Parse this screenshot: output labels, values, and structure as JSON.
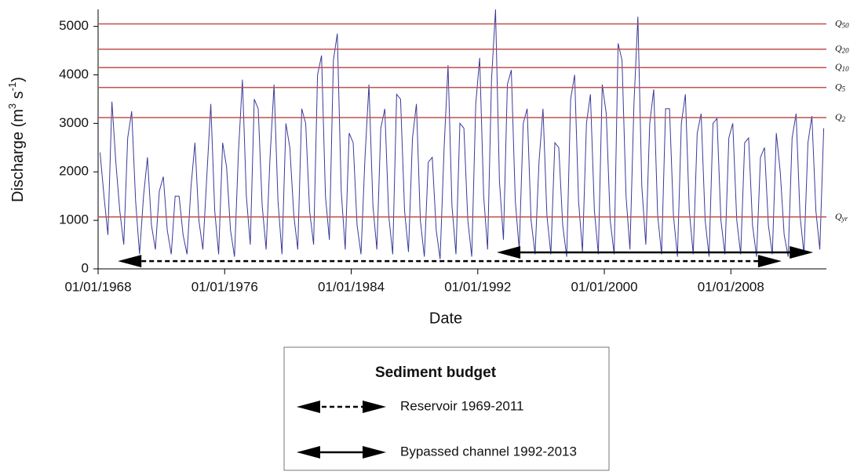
{
  "chart_data": {
    "type": "line",
    "xlabel": "Date",
    "ylabel": [
      "Discharge (m",
      "3",
      " s",
      "-1",
      ")"
    ],
    "color": "#3a3a9a",
    "xlim": [
      "01/01/1968",
      "15/01/2014"
    ],
    "xticks": [
      "01/01/1968",
      "01/01/1976",
      "01/01/1984",
      "01/01/1992",
      "01/01/2000",
      "01/01/2008"
    ],
    "ylim": [
      0,
      5350
    ],
    "yticks": [
      0,
      1000,
      2000,
      3000,
      4000,
      5000
    ],
    "x": [
      "15/02/1968",
      "15/05/1968",
      "15/08/1968",
      "15/11/1968",
      "15/02/1969",
      "15/05/1969",
      "15/08/1969",
      "15/11/1969",
      "15/02/1970",
      "15/05/1970",
      "15/08/1970",
      "15/11/1970",
      "15/02/1971",
      "15/05/1971",
      "15/08/1971",
      "15/11/1971",
      "15/02/1972",
      "15/05/1972",
      "15/08/1972",
      "15/11/1972",
      "15/02/1973",
      "15/05/1973",
      "15/08/1973",
      "15/11/1973",
      "15/02/1974",
      "15/05/1974",
      "15/08/1974",
      "15/11/1974",
      "15/02/1975",
      "15/05/1975",
      "15/08/1975",
      "15/11/1975",
      "15/02/1976",
      "15/05/1976",
      "15/08/1976",
      "15/11/1976",
      "15/02/1977",
      "15/05/1977",
      "15/08/1977",
      "15/11/1977",
      "15/02/1978",
      "15/05/1978",
      "15/08/1978",
      "15/11/1978",
      "15/02/1979",
      "15/05/1979",
      "15/08/1979",
      "15/11/1979",
      "15/02/1980",
      "15/05/1980",
      "15/08/1980",
      "15/11/1980",
      "15/02/1981",
      "15/05/1981",
      "15/08/1981",
      "15/11/1981",
      "15/02/1982",
      "15/05/1982",
      "15/08/1982",
      "15/11/1982",
      "15/02/1983",
      "15/05/1983",
      "15/08/1983",
      "15/11/1983",
      "15/02/1984",
      "15/05/1984",
      "15/08/1984",
      "15/11/1984",
      "15/02/1985",
      "15/05/1985",
      "15/08/1985",
      "15/11/1985",
      "15/02/1986",
      "15/05/1986",
      "15/08/1986",
      "15/11/1986",
      "15/02/1987",
      "15/05/1987",
      "15/08/1987",
      "15/11/1987",
      "15/02/1988",
      "15/05/1988",
      "15/08/1988",
      "15/11/1988",
      "15/02/1989",
      "15/05/1989",
      "15/08/1989",
      "15/11/1989",
      "15/02/1990",
      "15/05/1990",
      "15/08/1990",
      "15/11/1990",
      "15/02/1991",
      "15/05/1991",
      "15/08/1991",
      "15/11/1991",
      "15/02/1992",
      "15/05/1992",
      "15/08/1992",
      "15/11/1992",
      "15/02/1993",
      "15/05/1993",
      "15/08/1993",
      "15/11/1993",
      "15/02/1994",
      "15/05/1994",
      "15/08/1994",
      "15/11/1994",
      "15/02/1995",
      "15/05/1995",
      "15/08/1995",
      "15/11/1995",
      "15/02/1996",
      "15/05/1996",
      "15/08/1996",
      "15/11/1996",
      "15/02/1997",
      "15/05/1997",
      "15/08/1997",
      "15/11/1997",
      "15/02/1998",
      "15/05/1998",
      "15/08/1998",
      "15/11/1998",
      "15/02/1999",
      "15/05/1999",
      "15/08/1999",
      "15/11/1999",
      "15/02/2000",
      "15/05/2000",
      "15/08/2000",
      "15/11/2000",
      "15/02/2001",
      "15/05/2001",
      "15/08/2001",
      "15/11/2001",
      "15/02/2002",
      "15/05/2002",
      "15/08/2002",
      "15/11/2002",
      "15/02/2003",
      "15/05/2003",
      "15/08/2003",
      "15/11/2003",
      "15/02/2004",
      "15/05/2004",
      "15/08/2004",
      "15/11/2004",
      "15/02/2005",
      "15/05/2005",
      "15/08/2005",
      "15/11/2005",
      "15/02/2006",
      "15/05/2006",
      "15/08/2006",
      "15/11/2006",
      "15/02/2007",
      "15/05/2007",
      "15/08/2007",
      "15/11/2007",
      "15/02/2008",
      "15/05/2008",
      "15/08/2008",
      "15/11/2008",
      "15/02/2009",
      "15/05/2009",
      "15/08/2009",
      "15/11/2009",
      "15/02/2010",
      "15/05/2010",
      "15/08/2010",
      "15/11/2010",
      "15/02/2011",
      "15/05/2011",
      "15/08/2011",
      "15/11/2011",
      "15/02/2012",
      "15/05/2012",
      "15/08/2012",
      "15/11/2012",
      "15/02/2013",
      "15/05/2013",
      "15/08/2013",
      "15/11/2013"
    ],
    "values": [
      2400,
      1500,
      700,
      3450,
      2200,
      1200,
      500,
      2700,
      3250,
      1400,
      300,
      1500,
      2300,
      900,
      400,
      1600,
      1900,
      800,
      300,
      1500,
      1500,
      700,
      300,
      1700,
      2600,
      1000,
      400,
      1900,
      3400,
      1200,
      300,
      2600,
      2100,
      800,
      250,
      2400,
      3900,
      1500,
      500,
      3500,
      3300,
      1300,
      400,
      2300,
      3800,
      1400,
      300,
      3000,
      2500,
      1100,
      400,
      3300,
      3000,
      1200,
      500,
      4000,
      4400,
      1500,
      600,
      4300,
      4850,
      1600,
      400,
      2800,
      2600,
      900,
      300,
      2300,
      3800,
      1300,
      400,
      2900,
      3300,
      1100,
      300,
      3600,
      3500,
      1200,
      350,
      2700,
      3400,
      1000,
      250,
      2200,
      2300,
      800,
      200,
      2500,
      4200,
      1300,
      300,
      3000,
      2900,
      1000,
      250,
      3400,
      4350,
      1500,
      400,
      3900,
      5350,
      1800,
      600,
      3800,
      4100,
      1400,
      400,
      3000,
      3300,
      1000,
      300,
      2200,
      3300,
      1100,
      300,
      2600,
      2500,
      900,
      250,
      3500,
      4000,
      1400,
      350,
      3000,
      3600,
      1200,
      300,
      3800,
      3200,
      1000,
      300,
      4650,
      4300,
      1500,
      400,
      3400,
      5200,
      1700,
      500,
      3000,
      3700,
      1100,
      300,
      3300,
      3300,
      1100,
      250,
      3000,
      3600,
      1200,
      300,
      2800,
      3200,
      1000,
      250,
      3000,
      3100,
      1000,
      300,
      2700,
      3000,
      1000,
      300,
      2600,
      2700,
      900,
      250,
      2300,
      2500,
      900,
      300,
      2800,
      2000,
      700,
      250,
      2700,
      3200,
      1100,
      300,
      2600,
      3150,
      1200,
      400,
      2900
    ],
    "reference_lines": [
      {
        "symbol": "Q",
        "subscript": "50",
        "value": 5050,
        "color": "#c0504d"
      },
      {
        "symbol": "Q",
        "subscript": "20",
        "value": 4530,
        "color": "#c0504d"
      },
      {
        "symbol": "Q",
        "subscript": "10",
        "value": 4150,
        "color": "#c0504d"
      },
      {
        "symbol": "Q",
        "subscript": "5",
        "value": 3740,
        "color": "#c0504d"
      },
      {
        "symbol": "Q",
        "subscript": "2",
        "value": 3120,
        "color": "#c0504d"
      },
      {
        "symbol": "Q",
        "subscript": "yr",
        "value": 1070,
        "color": "#c0504d"
      }
    ],
    "legend_title": "Sediment budget",
    "annotations": [
      {
        "label": "Reservoir 1969-2011",
        "start": "01/04/1969",
        "end": "15/03/2011",
        "y": 160,
        "style": "dashed"
      },
      {
        "label": "Bypassed channel 1992-2013",
        "start": "15/03/1993",
        "end": "15/03/2013",
        "y": 340,
        "style": "solid"
      }
    ]
  }
}
